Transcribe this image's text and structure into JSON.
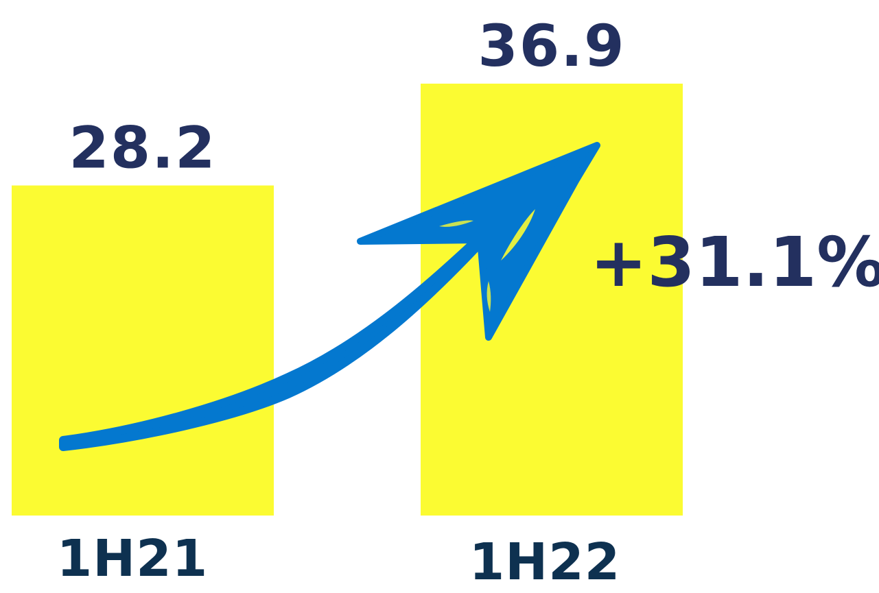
{
  "chart_data": {
    "type": "bar",
    "categories": [
      "1H21",
      "1H22"
    ],
    "values": [
      28.2,
      36.9
    ],
    "value_labels": [
      "28.2",
      "36.9"
    ],
    "growth_annotation": "+31.1%",
    "title": "",
    "xlabel": "",
    "ylabel": "",
    "ylim": [
      0,
      36.9
    ],
    "grid": false,
    "legend": "none"
  },
  "colors": {
    "bar": "#FBFB32",
    "value_text": "#23305F",
    "category_text": "#0E3150",
    "arrow": "#0478CF",
    "growth_text": "#23305F"
  },
  "icons": {
    "arrow": "hand-drawn-growth-arrow-icon"
  }
}
